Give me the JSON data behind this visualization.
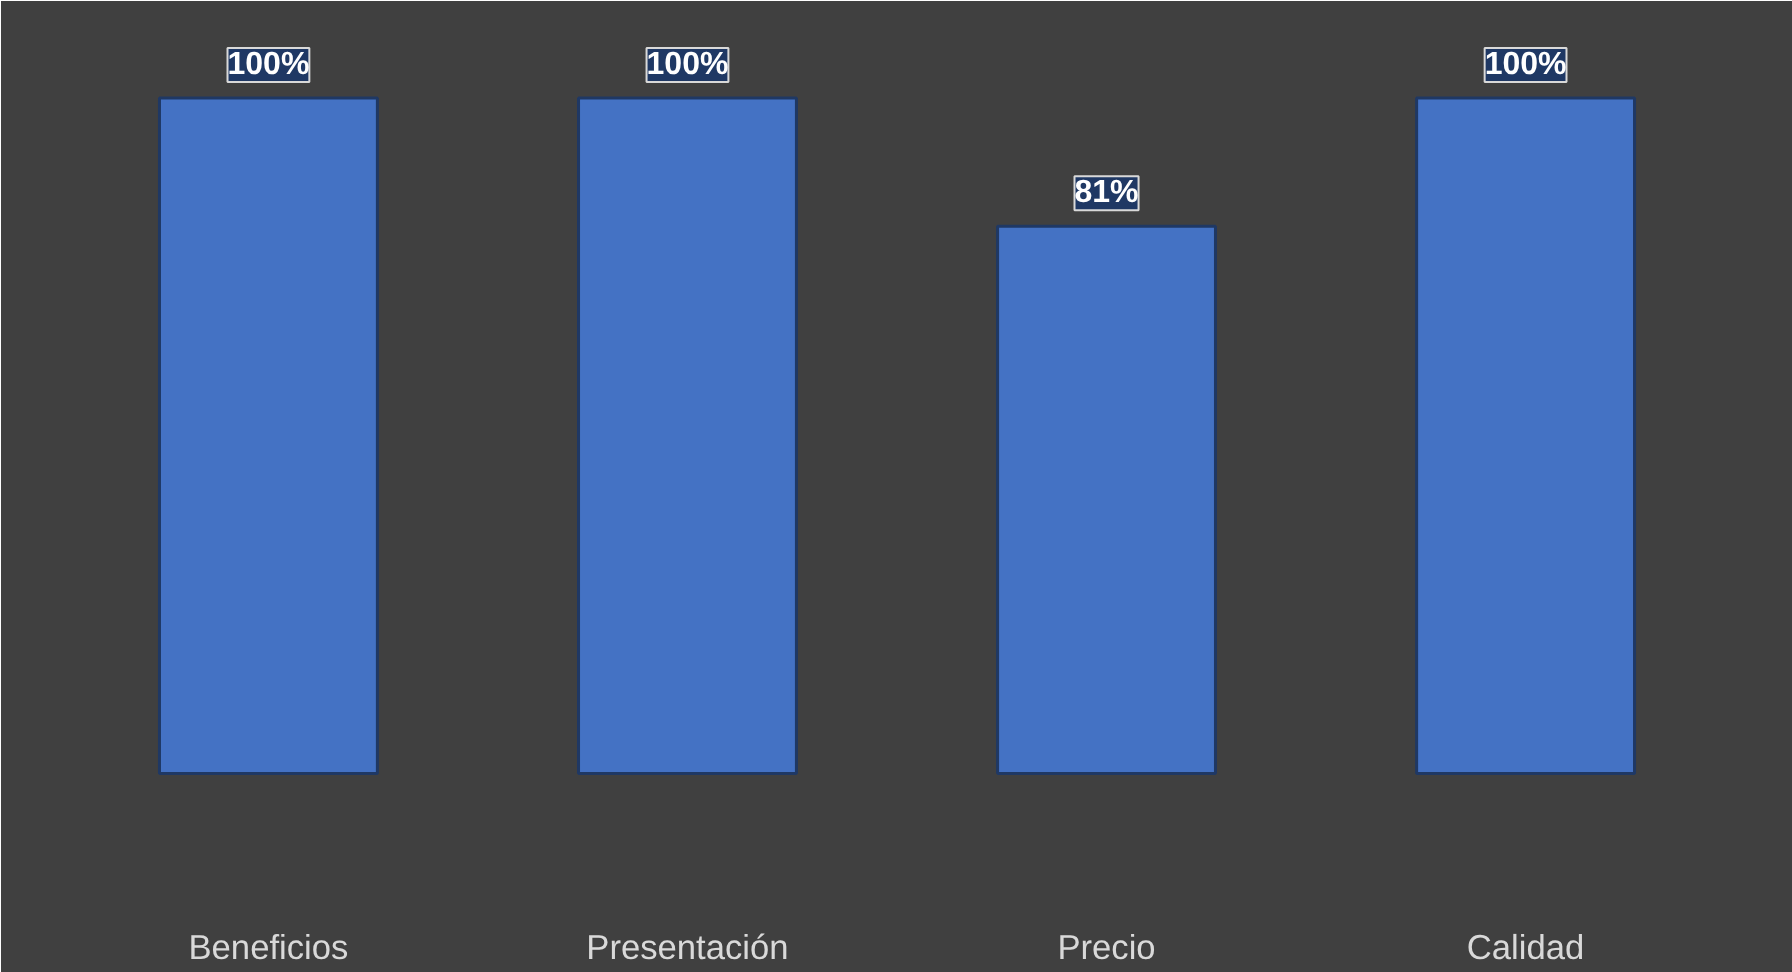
{
  "chart_data": {
    "type": "bar",
    "categories": [
      "Beneficios",
      "Presentación",
      "Precio",
      "Calidad"
    ],
    "values": [
      100,
      100,
      81,
      100
    ],
    "value_labels": [
      "100%",
      "100%",
      "81%",
      "100%"
    ],
    "color": "#4472c4"
  }
}
